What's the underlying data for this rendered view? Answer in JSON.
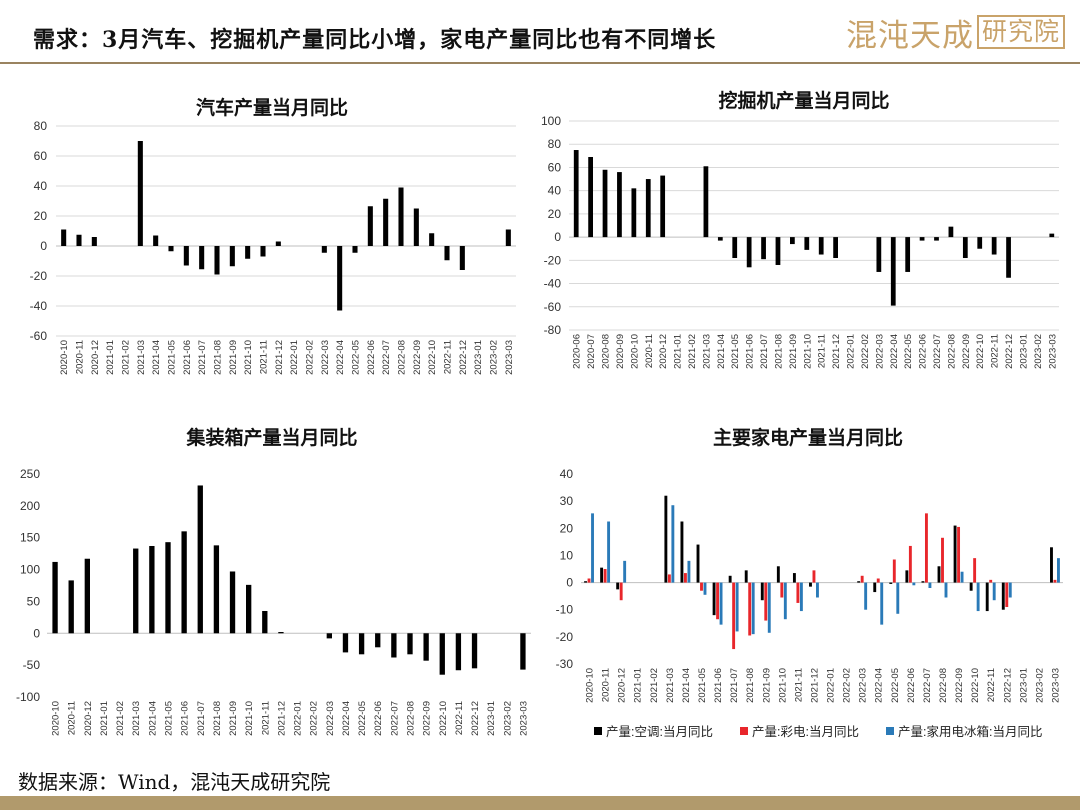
{
  "page": {
    "title": "需求：3月汽车、挖掘机产量同比小增，家电产量同比也有不同增长",
    "logo_main": "混沌天成",
    "logo_sub": "研究院",
    "source": "数据来源：Wind，混沌天成研究院"
  },
  "colors": {
    "bar": "#000000",
    "series2": "#e8262b",
    "series3": "#2a7ab8",
    "grid": "#d9d9d9",
    "accent": "#b19a6c"
  },
  "chart_data": [
    {
      "id": "auto",
      "type": "bar",
      "title": "汽车产量当月同比",
      "ylim": [
        -60,
        80
      ],
      "yticks": [
        80,
        60,
        40,
        20,
        0,
        -20,
        -40,
        -60
      ],
      "grid": true,
      "categories": [
        "2020-10",
        "2020-11",
        "2020-12",
        "2021-01",
        "2021-02",
        "2021-03",
        "2021-04",
        "2021-05",
        "2021-06",
        "2021-07",
        "2021-08",
        "2021-09",
        "2021-10",
        "2021-11",
        "2021-12",
        "2022-01",
        "2022-02",
        "2022-03",
        "2022-04",
        "2022-05",
        "2022-06",
        "2022-07",
        "2022-08",
        "2022-09",
        "2022-10",
        "2022-11",
        "2022-12",
        "2023-01",
        "2023-02",
        "2023-03"
      ],
      "values": [
        11,
        7.5,
        6,
        null,
        null,
        70,
        7,
        -3.5,
        -13,
        -15.5,
        -19,
        -13.5,
        -8.5,
        -7,
        3,
        null,
        null,
        -4.5,
        -43,
        -4.5,
        26.5,
        31.5,
        39,
        25,
        8.5,
        -9.5,
        -16,
        null,
        null,
        11
      ]
    },
    {
      "id": "excavator",
      "type": "bar",
      "title": "挖掘机产量当月同比",
      "ylim": [
        -80,
        100
      ],
      "yticks": [
        100,
        80,
        60,
        40,
        20,
        0,
        -20,
        -40,
        -60,
        -80
      ],
      "grid": true,
      "categories": [
        "2020-06",
        "2020-07",
        "2020-08",
        "2020-09",
        "2020-10",
        "2020-11",
        "2020-12",
        "2021-01",
        "2021-02",
        "2021-03",
        "2021-04",
        "2021-05",
        "2021-06",
        "2021-07",
        "2021-08",
        "2021-09",
        "2021-10",
        "2021-11",
        "2021-12",
        "2022-01",
        "2022-02",
        "2022-03",
        "2022-04",
        "2022-05",
        "2022-06",
        "2022-07",
        "2022-08",
        "2022-09",
        "2022-10",
        "2022-11",
        "2022-12",
        "2023-01",
        "2023-02",
        "2023-03"
      ],
      "values": [
        75,
        69,
        58,
        56,
        42,
        50,
        53,
        null,
        null,
        61,
        -3,
        -18,
        -26,
        -19,
        -24,
        -6,
        -11,
        -15,
        -18,
        null,
        null,
        -30,
        -59,
        -30,
        -3,
        -3,
        9,
        -18,
        -10,
        -15,
        -35,
        null,
        null,
        3
      ]
    },
    {
      "id": "container",
      "type": "bar",
      "title": "集装箱产量当月同比",
      "ylim": [
        -100,
        250
      ],
      "yticks": [
        250,
        200,
        150,
        100,
        50,
        0,
        -50,
        -100
      ],
      "grid": false,
      "categories": [
        "2020-10",
        "2020-11",
        "2020-12",
        "2021-01",
        "2021-02",
        "2021-03",
        "2021-04",
        "2021-05",
        "2021-06",
        "2021-07",
        "2021-08",
        "2021-09",
        "2021-10",
        "2021-11",
        "2021-12",
        "2022-01",
        "2022-02",
        "2022-03",
        "2022-04",
        "2022-05",
        "2022-06",
        "2022-07",
        "2022-08",
        "2022-09",
        "2022-10",
        "2022-11",
        "2022-12",
        "2023-01",
        "2023-02",
        "2023-03"
      ],
      "values": [
        112,
        83,
        117,
        null,
        null,
        133,
        137,
        143,
        160,
        232,
        138,
        97,
        76,
        35,
        2,
        null,
        null,
        -8,
        -30,
        -33,
        -22,
        -38,
        -33,
        -43,
        -65,
        -58,
        -55,
        null,
        null,
        -57
      ]
    },
    {
      "id": "appliances",
      "type": "bar",
      "title": "主要家电产量当月同比",
      "ylim": [
        -30,
        40
      ],
      "yticks": [
        40,
        30,
        20,
        10,
        0,
        -10,
        -20,
        -30
      ],
      "grid": false,
      "legend_position": "bottom",
      "categories": [
        "2020-10",
        "2020-11",
        "2020-12",
        "2021-01",
        "2021-02",
        "2021-03",
        "2021-04",
        "2021-05",
        "2021-06",
        "2021-07",
        "2021-08",
        "2021-09",
        "2021-10",
        "2021-11",
        "2021-12",
        "2022-01",
        "2022-02",
        "2022-03",
        "2022-04",
        "2022-05",
        "2022-06",
        "2022-07",
        "2022-08",
        "2022-09",
        "2022-10",
        "2022-11",
        "2022-12",
        "2023-01",
        "2023-02",
        "2023-03"
      ],
      "series": [
        {
          "name": "产量:空调:当月同比",
          "color": "#000000",
          "values": [
            0.5,
            5.5,
            -2.5,
            null,
            null,
            32,
            22.5,
            14,
            -12,
            2.5,
            4.5,
            -6.5,
            6,
            3.5,
            -1.5,
            null,
            null,
            0.5,
            -3.5,
            -0.5,
            4.5,
            0.5,
            6,
            21,
            -3,
            -10.5,
            -10,
            null,
            null,
            13
          ]
        },
        {
          "name": "产量:彩电:当月同比",
          "color": "#e8262b",
          "values": [
            1.5,
            5,
            -6.5,
            null,
            null,
            3,
            3.5,
            -3,
            -13.5,
            -24.5,
            -19.5,
            -14,
            -5.5,
            -7.5,
            4.5,
            null,
            null,
            2.5,
            1.5,
            8.5,
            13.5,
            25.5,
            16.5,
            20.5,
            9,
            1,
            -9,
            null,
            null,
            1
          ]
        },
        {
          "name": "产量:家用电冰箱:当月同比",
          "color": "#2a7ab8",
          "values": [
            25.5,
            22.5,
            8,
            null,
            null,
            28.5,
            8,
            -4.5,
            -15.5,
            -18,
            -19,
            -18.5,
            -13.5,
            -10.5,
            -5.5,
            null,
            null,
            -10,
            -15.5,
            -11.5,
            -1,
            -2,
            -5.5,
            4,
            -10.5,
            -6.5,
            -5.5,
            null,
            null,
            9
          ]
        }
      ]
    }
  ]
}
